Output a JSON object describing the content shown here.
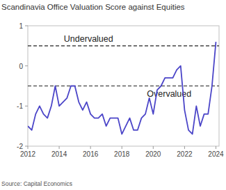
{
  "chart_data": {
    "type": "line",
    "title": "Scandinavia Office Valuation Score against Equities",
    "source": "Source: Capital Economics",
    "annotations": [
      {
        "text": "Undervalued",
        "value": 0.5
      },
      {
        "text": "Overvalued",
        "value": -0.5
      }
    ],
    "x": [
      2012.0,
      2012.25,
      2012.5,
      2012.75,
      2013.0,
      2013.25,
      2013.5,
      2013.75,
      2014.0,
      2014.25,
      2014.5,
      2014.75,
      2015.0,
      2015.25,
      2015.5,
      2015.75,
      2016.0,
      2016.25,
      2016.5,
      2016.75,
      2017.0,
      2017.25,
      2017.5,
      2017.75,
      2018.0,
      2018.25,
      2018.5,
      2018.75,
      2019.0,
      2019.25,
      2019.5,
      2019.75,
      2020.0,
      2020.25,
      2020.5,
      2020.75,
      2021.0,
      2021.25,
      2021.5,
      2021.75,
      2022.0,
      2022.25,
      2022.5,
      2022.75,
      2023.0,
      2023.25,
      2023.5,
      2023.75,
      2024.0
    ],
    "series": [
      {
        "name": "Valuation score",
        "color": "#4b45c8",
        "values": [
          -1.5,
          -1.6,
          -1.2,
          -1.0,
          -1.2,
          -1.3,
          -1.0,
          -0.5,
          -1.0,
          -0.9,
          -0.8,
          -0.5,
          -0.5,
          -0.9,
          -1.1,
          -0.9,
          -1.2,
          -1.3,
          -1.3,
          -1.2,
          -1.5,
          -1.3,
          -1.3,
          -1.3,
          -1.7,
          -1.5,
          -1.3,
          -1.6,
          -1.6,
          -1.3,
          -1.2,
          -0.8,
          -1.2,
          -0.6,
          -0.5,
          -0.3,
          -0.3,
          -0.3,
          -0.1,
          0.0,
          -1.1,
          -1.6,
          -1.7,
          -1.0,
          -1.5,
          -1.2,
          -1.2,
          -0.5,
          0.6
        ]
      }
    ],
    "xlim": [
      2012,
      2024.2
    ],
    "xticks": [
      2012,
      2014,
      2016,
      2018,
      2020,
      2022,
      2024
    ],
    "ylim": [
      -2,
      1
    ],
    "yticks": [
      -2,
      -1,
      0,
      1
    ],
    "grid": false
  }
}
